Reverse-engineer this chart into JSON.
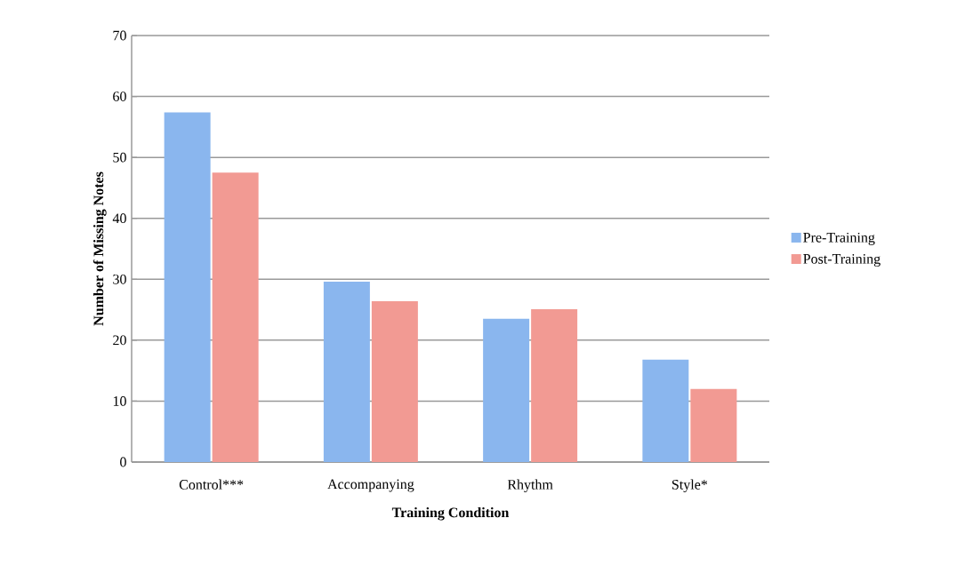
{
  "chart_data": {
    "type": "bar",
    "xlabel": "Training Condition",
    "ylabel": "Number of Missing Notes",
    "categories": [
      "Control***",
      "Accompanying",
      "Rhythm",
      "Style*"
    ],
    "series": [
      {
        "name": "Pre-Training",
        "color": "#8ab6ee",
        "values": [
          57.4,
          29.6,
          23.5,
          16.8
        ]
      },
      {
        "name": "Post-Training",
        "color": "#f29a93",
        "values": [
          47.5,
          26.4,
          25.1,
          12.0
        ]
      }
    ],
    "ylim": [
      0,
      70
    ],
    "yticks": [
      0,
      10,
      20,
      30,
      40,
      50,
      60,
      70
    ],
    "grid": "y",
    "legend": "right"
  }
}
